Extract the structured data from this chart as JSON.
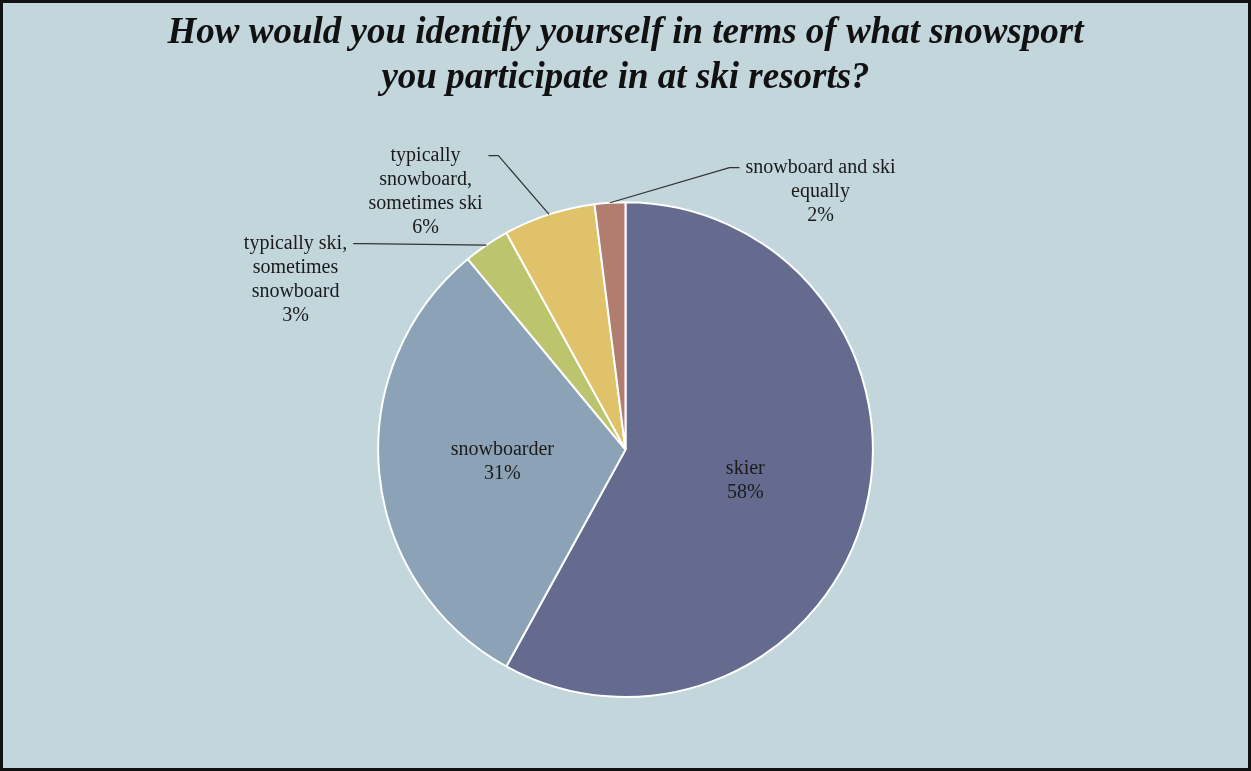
{
  "chart_data": {
    "type": "pie",
    "title": "How would you identify yourself in terms of what snowsport you participate in at ski resorts?",
    "categories": [
      "skier",
      "snowboarder",
      "typically ski, sometimes snowboard",
      "typically snowboard, sometimes ski",
      "snowboard and ski equally"
    ],
    "values": [
      58,
      31,
      3,
      6,
      2
    ],
    "value_labels": [
      "58%",
      "31%",
      "3%",
      "6%",
      "2%"
    ],
    "colors": [
      "#646b8f",
      "#8ca3b7",
      "#bcc46e",
      "#e0c26a",
      "#b07d6e"
    ],
    "legend": false
  }
}
